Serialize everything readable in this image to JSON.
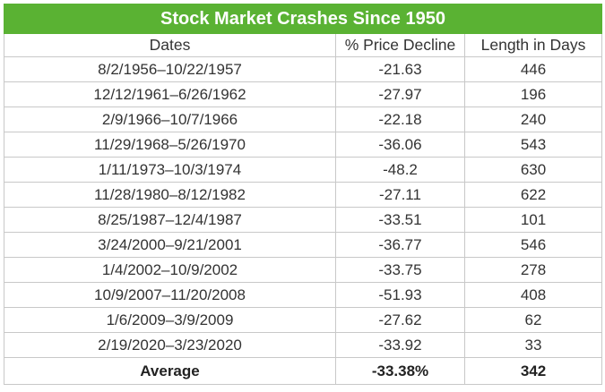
{
  "table": {
    "title": "Stock Market Crashes Since 1950",
    "headers": [
      "Dates",
      "% Price Decline",
      "Length in Days"
    ],
    "rows": [
      [
        "8/2/1956–10/22/1957",
        "-21.63",
        "446"
      ],
      [
        "12/12/1961–6/26/1962",
        "-27.97",
        "196"
      ],
      [
        "2/9/1966–10/7/1966",
        "-22.18",
        "240"
      ],
      [
        "11/29/1968–5/26/1970",
        "-36.06",
        "543"
      ],
      [
        "1/11/1973–10/3/1974",
        "-48.2",
        "630"
      ],
      [
        "11/28/1980–8/12/1982",
        "-27.11",
        "622"
      ],
      [
        "8/25/1987–12/4/1987",
        "-33.51",
        "101"
      ],
      [
        "3/24/2000–9/21/2001",
        "-36.77",
        "546"
      ],
      [
        "1/4/2002–10/9/2002",
        "-33.75",
        "278"
      ],
      [
        "10/9/2007–11/20/2008",
        "-51.93",
        "408"
      ],
      [
        "1/6/2009–3/9/2009",
        "-27.62",
        "62"
      ],
      [
        "2/19/2020–3/23/2020",
        "-33.92",
        "33"
      ]
    ],
    "average": [
      "Average",
      "-33.38%",
      "342"
    ]
  },
  "colors": {
    "header_bg": "#5ab233",
    "header_text": "#ffffff",
    "border": "#c8c8c8"
  }
}
